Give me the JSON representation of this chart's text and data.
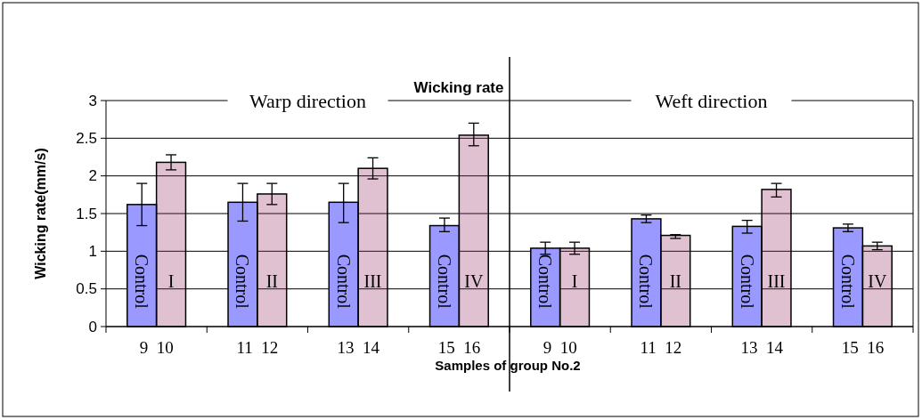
{
  "chart_data": [
    {
      "type": "bar",
      "title": "Wicking rate",
      "ylabel": "Wicking rate(mm/s)",
      "categories": [
        "9 10",
        "11 12",
        "13 14",
        "15 16"
      ],
      "series": [
        {
          "name": "Control",
          "color": "#9999ff",
          "values": [
            1.62,
            1.65,
            1.65,
            1.34
          ],
          "errors": [
            [
              1.34,
              1.9
            ],
            [
              1.4,
              1.9
            ],
            [
              1.38,
              1.9
            ],
            [
              1.26,
              1.44
            ]
          ]
        },
        {
          "color": "#993366",
          "values": [
            2.18,
            1.76,
            2.1,
            2.54
          ],
          "errors": [
            [
              2.08,
              2.28
            ],
            [
              1.62,
              1.9
            ],
            [
              1.96,
              2.24
            ],
            [
              2.4,
              2.7
            ]
          ],
          "value_labels": [
            "I",
            "II",
            "III",
            "IV"
          ]
        }
      ],
      "annotations": [
        "Warp direction"
      ],
      "ylim": [
        0,
        3
      ],
      "yticks": [
        0,
        0.5,
        1,
        1.5,
        2,
        2.5,
        3
      ],
      "grid": "y"
    },
    {
      "type": "bar",
      "xlabel": "Samples of group No.2",
      "categories": [
        "9 10",
        "11 12",
        "13 14",
        "15 16"
      ],
      "series": [
        {
          "name": "Control",
          "color": "#9999ff",
          "values": [
            1.04,
            1.43,
            1.33,
            1.31
          ],
          "errors": [
            [
              0.96,
              1.12
            ],
            [
              1.38,
              1.48
            ],
            [
              1.24,
              1.41
            ],
            [
              1.26,
              1.36
            ]
          ]
        },
        {
          "color": "#993366",
          "values": [
            1.04,
            1.21,
            1.82,
            1.07
          ],
          "errors": [
            [
              0.96,
              1.12
            ],
            [
              1.17,
              1.22
            ],
            [
              1.72,
              1.9
            ],
            [
              1.02,
              1.12
            ]
          ],
          "value_labels": [
            "I",
            "II",
            "III",
            "IV"
          ]
        }
      ],
      "annotations": [
        "Weft direction"
      ],
      "ylim": [
        0,
        3
      ],
      "yticks": [
        0,
        0.5,
        1,
        1.5,
        2,
        2.5,
        3
      ],
      "grid": "y",
      "tick_labels": "x"
    }
  ]
}
